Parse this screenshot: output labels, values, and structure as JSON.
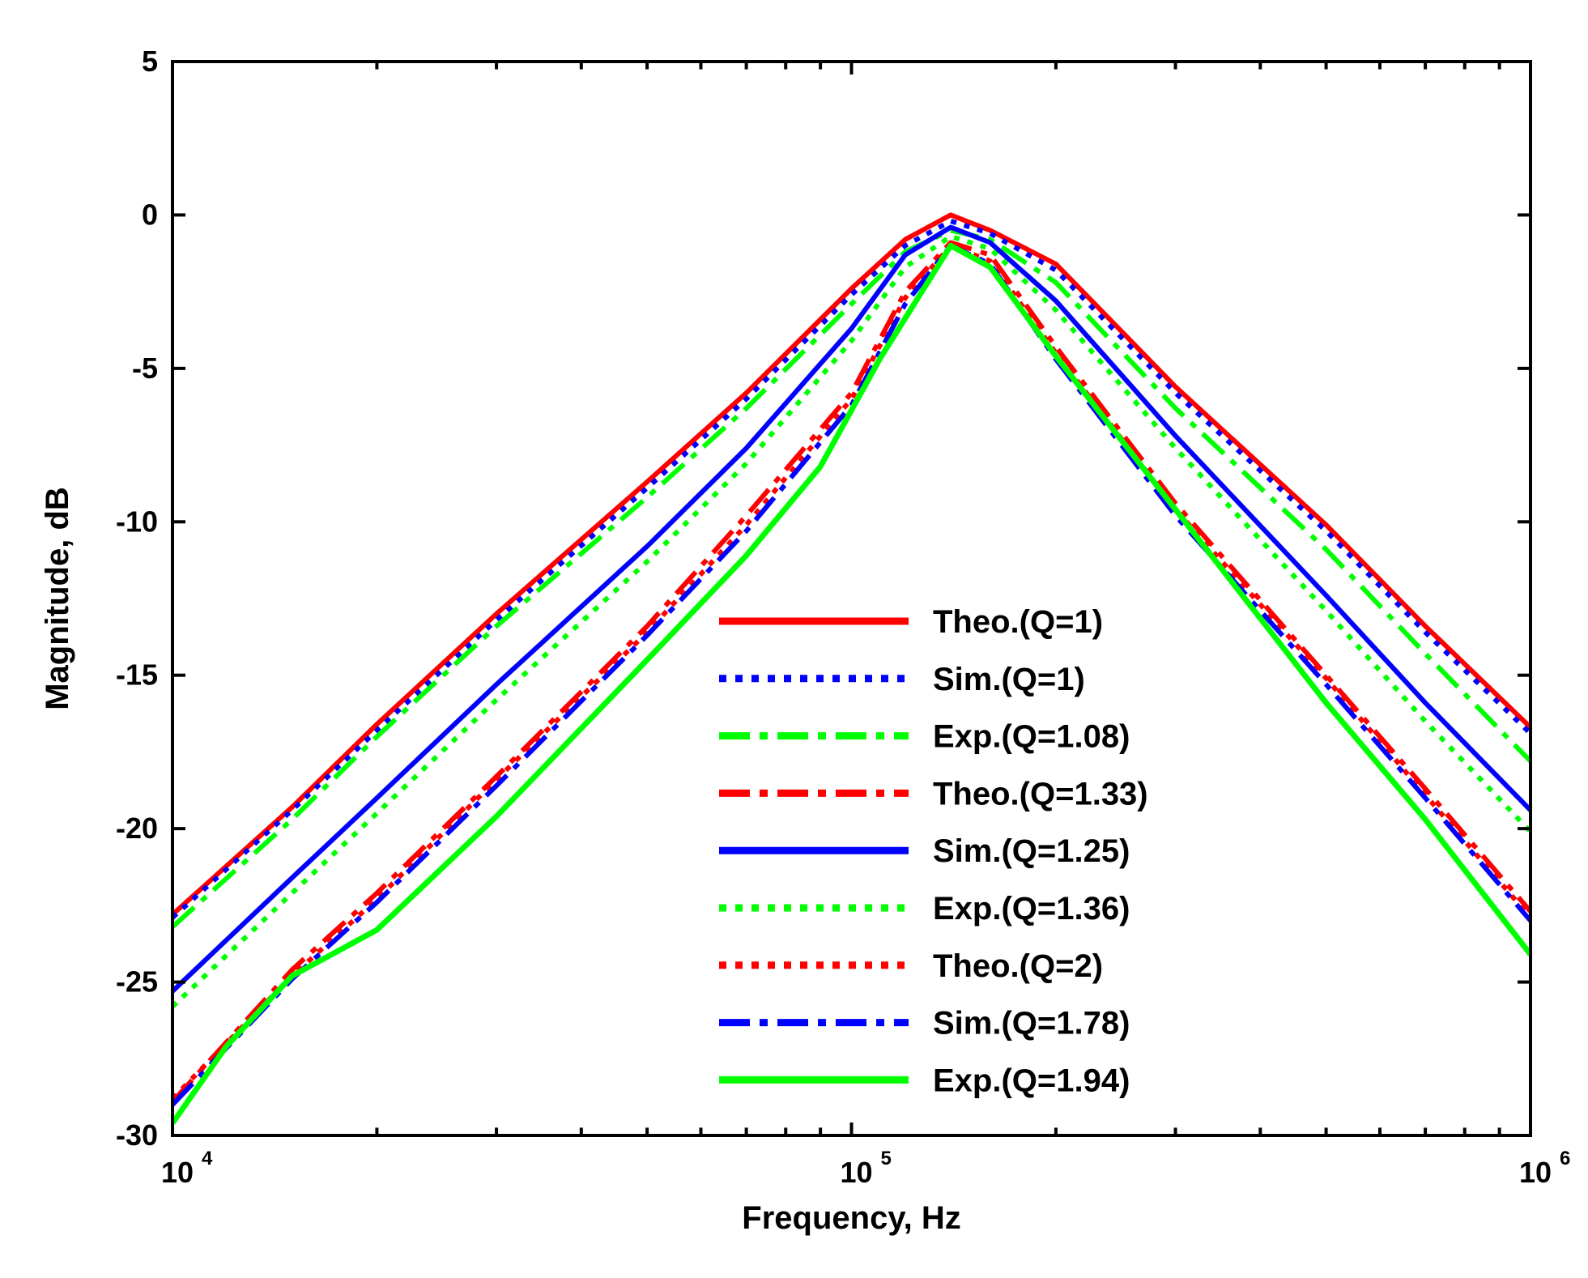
{
  "chart_data": {
    "type": "line",
    "xscale": "log",
    "xlabel": "Frequency, Hz",
    "ylabel": "Magnitude, dB",
    "xlim": [
      10000,
      1000000
    ],
    "ylim": [
      -30,
      5
    ],
    "x_ticks": [
      {
        "value": 10000,
        "base": "10",
        "exp": "4"
      },
      {
        "value": 100000,
        "base": "10",
        "exp": "5"
      },
      {
        "value": 1000000,
        "base": "10",
        "exp": "6"
      }
    ],
    "y_ticks": [
      {
        "value": 5,
        "label": "5"
      },
      {
        "value": 0,
        "label": "0"
      },
      {
        "value": -5,
        "label": "-5"
      },
      {
        "value": -10,
        "label": "-10"
      },
      {
        "value": -15,
        "label": "-15"
      },
      {
        "value": -20,
        "label": "-20"
      },
      {
        "value": -25,
        "label": "-25"
      },
      {
        "value": -30,
        "label": "-30"
      }
    ],
    "legend_position": "lower-center",
    "series": [
      {
        "name": "Theo.(Q=1)",
        "color": "#ff0000",
        "style": "solid",
        "width": 6,
        "x": [
          10000,
          15000,
          20000,
          30000,
          50000,
          70000,
          100000,
          120000,
          140000,
          160000,
          200000,
          300000,
          500000,
          700000,
          1000000
        ],
        "y": [
          -22.8,
          -19.3,
          -16.6,
          -13.0,
          -8.7,
          -5.8,
          -2.4,
          -0.8,
          0,
          -0.5,
          -1.6,
          -5.6,
          -10.1,
          -13.4,
          -16.7
        ]
      },
      {
        "name": "Sim.(Q=1)",
        "color": "#0000ff",
        "style": "dot",
        "width": 6,
        "x": [
          10000,
          15000,
          20000,
          30000,
          50000,
          70000,
          100000,
          120000,
          140000,
          160000,
          200000,
          300000,
          500000,
          700000,
          1000000
        ],
        "y": [
          -22.9,
          -19.4,
          -16.8,
          -13.2,
          -8.9,
          -6.0,
          -2.6,
          -1.0,
          -0.2,
          -0.6,
          -1.8,
          -5.8,
          -10.3,
          -13.6,
          -16.9
        ]
      },
      {
        "name": "Exp.(Q=1.08)",
        "color": "#00ff00",
        "style": "dashdot",
        "width": 6,
        "x": [
          10000,
          15000,
          20000,
          30000,
          50000,
          70000,
          100000,
          120000,
          140000,
          160000,
          200000,
          300000,
          500000,
          700000,
          1000000
        ],
        "y": [
          -23.2,
          -19.7,
          -17.0,
          -13.4,
          -9.2,
          -6.3,
          -2.9,
          -1.2,
          -0.5,
          -0.8,
          -2.2,
          -6.3,
          -10.9,
          -14.3,
          -17.8
        ]
      },
      {
        "name": "Theo.(Q=1.33)",
        "color": "#ff0000",
        "style": "dashdot",
        "width": 6,
        "x": [
          10000,
          15000,
          20000,
          30000,
          50000,
          70000,
          100000,
          120000,
          140000,
          160000,
          200000,
          300000,
          500000,
          700000,
          1000000
        ],
        "y": [
          -28.9,
          -24.6,
          -22.1,
          -18.3,
          -13.4,
          -9.8,
          -5.8,
          -2.5,
          -0.9,
          -1.3,
          -4.3,
          -9.4,
          -15.0,
          -18.7,
          -22.7
        ]
      },
      {
        "name": "Sim.(Q=1.25)",
        "color": "#0000ff",
        "style": "solid",
        "width": 6,
        "x": [
          10000,
          15000,
          20000,
          30000,
          50000,
          70000,
          100000,
          120000,
          140000,
          160000,
          200000,
          300000,
          500000,
          700000,
          1000000
        ],
        "y": [
          -25.3,
          -21.6,
          -19.0,
          -15.3,
          -10.8,
          -7.6,
          -3.7,
          -1.3,
          -0.4,
          -0.9,
          -2.8,
          -7.2,
          -12.4,
          -15.9,
          -19.4
        ]
      },
      {
        "name": "Exp.(Q=1.36)",
        "color": "#00ff00",
        "style": "dot",
        "width": 6,
        "x": [
          10000,
          15000,
          20000,
          30000,
          50000,
          70000,
          100000,
          120000,
          140000,
          160000,
          200000,
          300000,
          500000,
          700000,
          1000000
        ],
        "y": [
          -25.8,
          -22.1,
          -19.5,
          -15.8,
          -11.3,
          -8.1,
          -4.1,
          -1.7,
          -0.7,
          -1.1,
          -3.1,
          -7.6,
          -12.9,
          -16.5,
          -20.1
        ]
      },
      {
        "name": "Theo.(Q=2)",
        "color": "#ff0000",
        "style": "dot",
        "width": 6,
        "x": [
          10000,
          15000,
          20000,
          30000,
          50000,
          70000,
          100000,
          120000,
          140000,
          160000,
          200000,
          300000,
          500000,
          700000,
          1000000
        ],
        "y": [
          -28.8,
          -24.8,
          -22.3,
          -18.4,
          -13.6,
          -10.1,
          -6.0,
          -2.7,
          -1.0,
          -1.5,
          -4.5,
          -9.6,
          -15.1,
          -18.9,
          -22.9
        ]
      },
      {
        "name": "Sim.(Q=1.78)",
        "color": "#0000ff",
        "style": "dashdot",
        "width": 6,
        "x": [
          10000,
          15000,
          20000,
          30000,
          50000,
          70000,
          100000,
          120000,
          140000,
          160000,
          200000,
          300000,
          500000,
          700000,
          1000000
        ],
        "y": [
          -29.0,
          -24.9,
          -22.4,
          -18.6,
          -13.7,
          -10.3,
          -6.2,
          -2.9,
          -1.0,
          -1.6,
          -4.7,
          -9.8,
          -15.3,
          -19.0,
          -23.0
        ]
      },
      {
        "name": "Exp.(Q=1.94)",
        "color": "#00ff00",
        "style": "solid",
        "width": 7,
        "x": [
          10000,
          12000,
          15000,
          20000,
          30000,
          50000,
          70000,
          90000,
          110000,
          140000,
          160000,
          200000,
          300000,
          500000,
          700000,
          1000000
        ],
        "y": [
          -29.6,
          -27.1,
          -24.8,
          -23.3,
          -19.6,
          -14.5,
          -11.1,
          -8.2,
          -4.7,
          -1.0,
          -1.7,
          -4.6,
          -9.6,
          -15.9,
          -19.7,
          -24.1
        ]
      }
    ]
  }
}
